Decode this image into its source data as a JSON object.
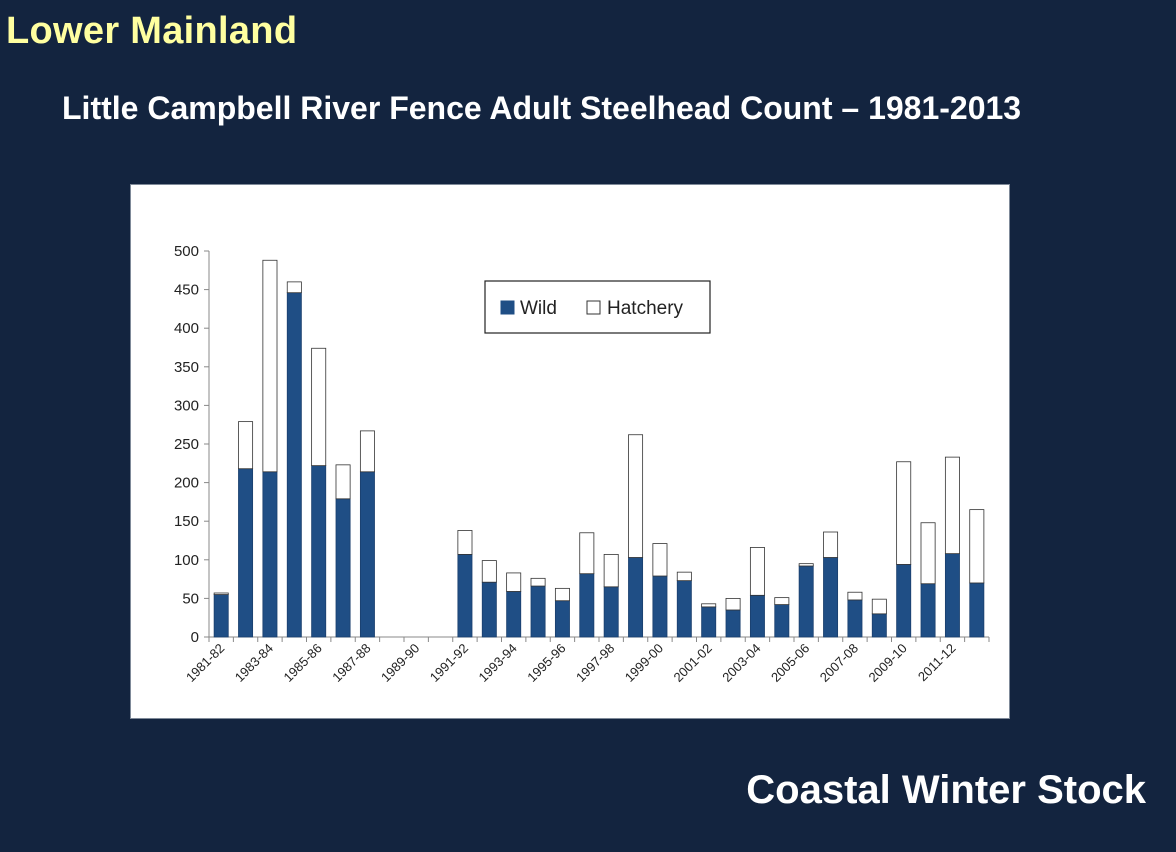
{
  "slide": {
    "region": "Lower Mainland",
    "title": "Little Campbell River Fence Adult Steelhead Count – 1981-2013",
    "footer": "Coastal Winter Stock"
  },
  "colors": {
    "background": "#13243f",
    "region_text": "#ffffa0",
    "wild": "#1f4e85",
    "hatchery": "#ffffff"
  },
  "chart_data": {
    "type": "bar",
    "stacked": true,
    "categories": [
      "1981-82",
      "1982-83",
      "1983-84",
      "1984-85",
      "1985-86",
      "1986-87",
      "1987-88",
      "1988-89",
      "1989-90",
      "1990-91",
      "1991-92",
      "1992-93",
      "1993-94",
      "1994-95",
      "1995-96",
      "1996-97",
      "1997-98",
      "1998-99",
      "1999-00",
      "2000-01",
      "2001-02",
      "2002-03",
      "2003-04",
      "2004-05",
      "2005-06",
      "2006-07",
      "2007-08",
      "2008-09",
      "2009-10",
      "2010-11",
      "2011-12",
      "2012-13"
    ],
    "tick_labels": [
      "1981-82",
      "1983-84",
      "1985-86",
      "1987-88",
      "1989-90",
      "1991-92",
      "1993-94",
      "1995-96",
      "1997-98",
      "1999-00",
      "2001-02",
      "2003-04",
      "2005-06",
      "2007-08",
      "2009-10",
      "2011-12"
    ],
    "series": [
      {
        "name": "Wild",
        "color": "#1f4e85",
        "values": [
          55,
          218,
          214,
          446,
          222,
          179,
          214,
          0,
          0,
          0,
          107,
          71,
          59,
          66,
          47,
          82,
          65,
          103,
          79,
          73,
          39,
          35,
          54,
          42,
          92,
          103,
          48,
          30,
          94,
          69,
          108,
          70
        ]
      },
      {
        "name": "Hatchery",
        "color": "#ffffff",
        "values": [
          2,
          61,
          274,
          14,
          152,
          44,
          53,
          0,
          0,
          0,
          31,
          28,
          24,
          10,
          16,
          53,
          42,
          159,
          42,
          11,
          4,
          15,
          62,
          9,
          3,
          33,
          10,
          19,
          133,
          79,
          125,
          95
        ]
      }
    ],
    "ylim": [
      0,
      500
    ],
    "yticks": [
      0,
      50,
      100,
      150,
      200,
      250,
      300,
      350,
      400,
      450,
      500
    ],
    "xlabel": "",
    "ylabel": "",
    "legend_position": "top-center",
    "grid": false
  }
}
